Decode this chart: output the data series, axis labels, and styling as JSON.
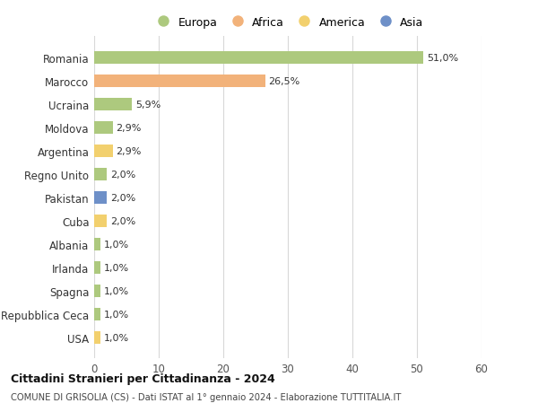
{
  "countries": [
    "Romania",
    "Marocco",
    "Ucraina",
    "Moldova",
    "Argentina",
    "Regno Unito",
    "Pakistan",
    "Cuba",
    "Albania",
    "Irlanda",
    "Spagna",
    "Repubblica Ceca",
    "USA"
  ],
  "values": [
    51.0,
    26.5,
    5.9,
    2.9,
    2.9,
    2.0,
    2.0,
    2.0,
    1.0,
    1.0,
    1.0,
    1.0,
    1.0
  ],
  "labels": [
    "51,0%",
    "26,5%",
    "5,9%",
    "2,9%",
    "2,9%",
    "2,0%",
    "2,0%",
    "2,0%",
    "1,0%",
    "1,0%",
    "1,0%",
    "1,0%",
    "1,0%"
  ],
  "continents": [
    "Europa",
    "Africa",
    "Europa",
    "Europa",
    "America",
    "Europa",
    "Asia",
    "America",
    "Europa",
    "Europa",
    "Europa",
    "Europa",
    "America"
  ],
  "colors": {
    "Europa": "#adc97e",
    "Africa": "#f2b27a",
    "America": "#f2d06e",
    "Asia": "#6e90c8"
  },
  "legend_order": [
    "Europa",
    "Africa",
    "America",
    "Asia"
  ],
  "xlim": [
    0,
    60
  ],
  "xticks": [
    0,
    10,
    20,
    30,
    40,
    50,
    60
  ],
  "title": "Cittadini Stranieri per Cittadinanza - 2024",
  "subtitle": "COMUNE DI GRISOLIA (CS) - Dati ISTAT al 1° gennaio 2024 - Elaborazione TUTTITALIA.IT",
  "background_color": "#ffffff",
  "grid_color": "#d8d8d8"
}
